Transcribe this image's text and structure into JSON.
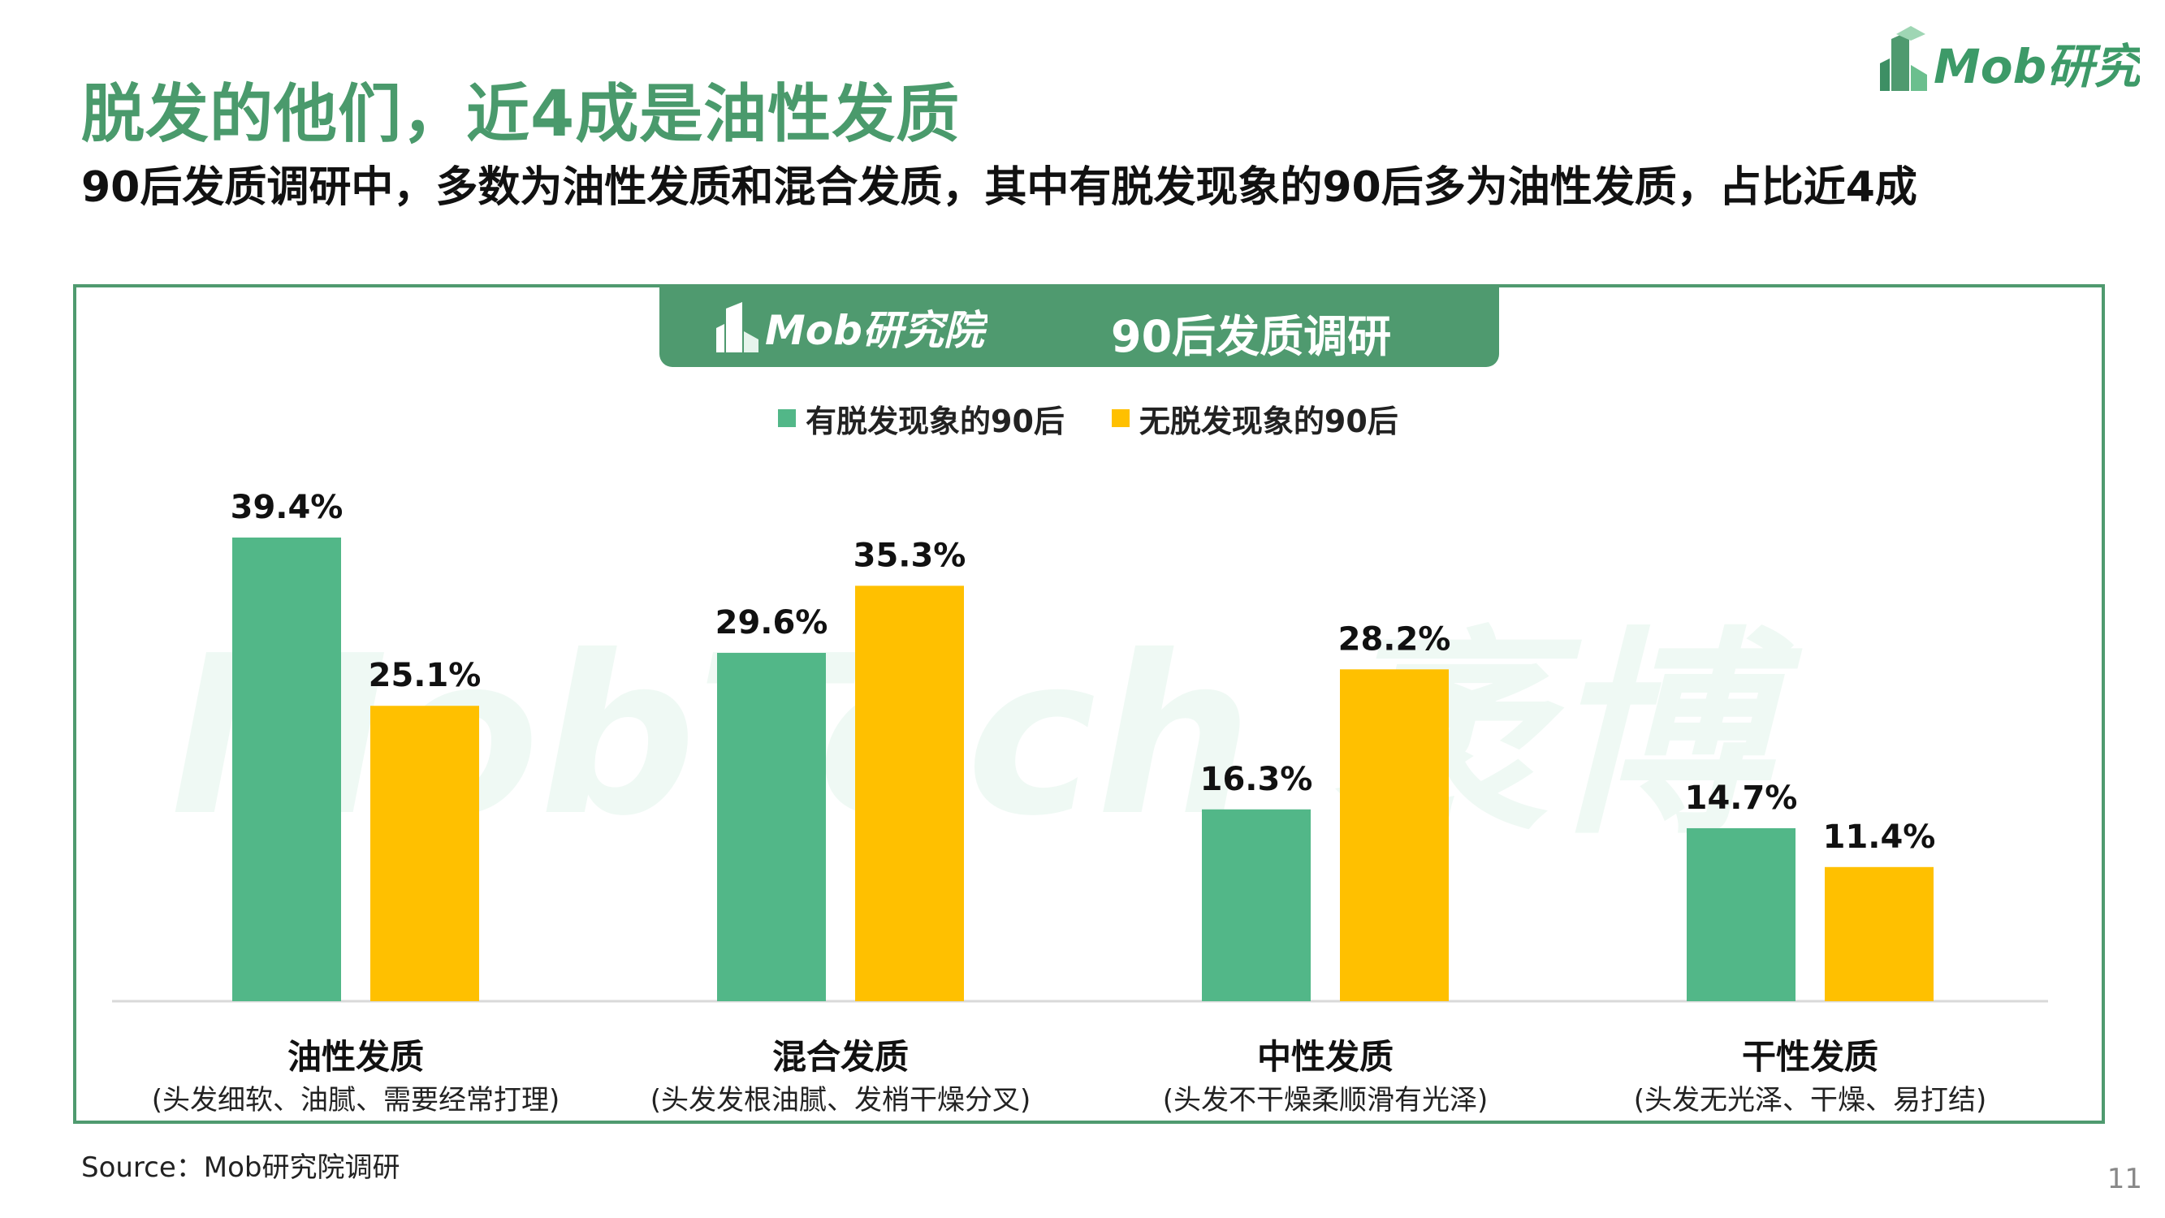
{
  "brand": {
    "logo_text": "Mob研究院",
    "watermark_text": "MobTech 袤博"
  },
  "page": {
    "title": "脱发的他们，近4成是油性发质",
    "subtitle": "90后发质调研中，多数为油性发质和混合发质，其中有脱发现象的90后多为油性发质，占比近4成",
    "page_number": "11"
  },
  "banner": {
    "title": "90后发质调研"
  },
  "source": "Source：Mob研究院调研",
  "colors": {
    "title_green": "#4a9a6c",
    "frame_green": "#4f9a6f",
    "series_green": "#52b788",
    "series_yellow": "#ffc000"
  },
  "chart_data": {
    "type": "bar",
    "categories": [
      "油性发质",
      "混合发质",
      "中性发质",
      "干性发质"
    ],
    "category_notes": [
      "(头发细软、油腻、需要经常打理)",
      "(头发发根油腻、发梢干燥分叉)",
      "(头发不干燥柔顺滑有光泽)",
      "(头发无光泽、干燥、易打结)"
    ],
    "series": [
      {
        "name": "有脱发现象的90后",
        "values": [
          39.4,
          29.6,
          16.3,
          14.7
        ],
        "labels": [
          "39.4%",
          "29.6%",
          "16.3%",
          "14.7%"
        ],
        "color": "#52b788"
      },
      {
        "name": "无脱发现象的90后",
        "values": [
          25.1,
          35.3,
          28.2,
          11.4
        ],
        "labels": [
          "25.1%",
          "35.3%",
          "28.2%",
          "11.4%"
        ],
        "color": "#ffc000"
      }
    ],
    "unit": "%",
    "ylim": [
      0,
      39.4
    ],
    "grid": false,
    "legend_position": "top-center"
  }
}
